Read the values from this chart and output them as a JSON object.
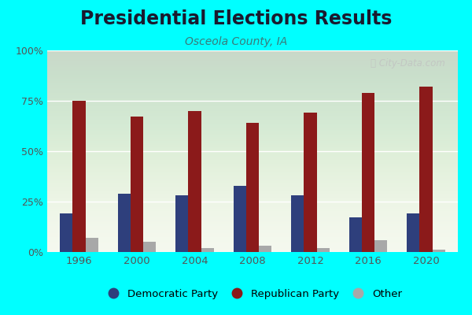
{
  "title": "Presidential Elections Results",
  "subtitle": "Osceola County, IA",
  "years": [
    1996,
    2000,
    2004,
    2008,
    2012,
    2016,
    2020
  ],
  "democratic": [
    19,
    29,
    28,
    33,
    28,
    17,
    19
  ],
  "republican": [
    75,
    67,
    70,
    64,
    69,
    79,
    82
  ],
  "other": [
    7,
    5,
    2,
    3,
    2,
    6,
    1
  ],
  "dem_color": "#2e3f7c",
  "rep_color": "#8b1a1a",
  "other_color": "#a8a8a8",
  "bg_color_top": "#e8f0d8",
  "bg_color_bottom": "#f5f8ee",
  "outer_bg": "#00ffff",
  "ylim": [
    0,
    100
  ],
  "yticks": [
    0,
    25,
    50,
    75,
    100
  ],
  "bar_width": 0.22,
  "title_fontsize": 17,
  "subtitle_fontsize": 10,
  "title_color": "#1a1a2e",
  "subtitle_color": "#3a7a7a",
  "tick_color": "#555555",
  "watermark": "ⓘ City-Data.com"
}
